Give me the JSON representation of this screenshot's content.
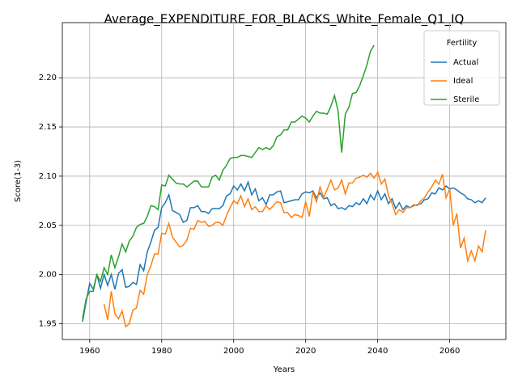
{
  "chart_data": {
    "type": "line",
    "title": "Average_EXPENDITURE_FOR_BLACKS_White_Female_Q1_IQ",
    "x_label": "Years",
    "y_label": "Score(1-3)",
    "x": [
      1958,
      1959,
      1960,
      1961,
      1962,
      1963,
      1964,
      1965,
      1966,
      1967,
      1968,
      1969,
      1970,
      1971,
      1972,
      1973,
      1974,
      1975,
      1976,
      1977,
      1978,
      1979,
      1980,
      1981,
      1982,
      1983,
      1984,
      1985,
      1986,
      1987,
      1988,
      1989,
      1990,
      1991,
      1992,
      1993,
      1994,
      1995,
      1996,
      1997,
      1998,
      1999,
      2000,
      2001,
      2002,
      2003,
      2004,
      2005,
      2006,
      2007,
      2008,
      2009,
      2010,
      2011,
      2012,
      2013,
      2014,
      2015,
      2016,
      2017,
      2018,
      2019,
      2020,
      2021,
      2022,
      2023,
      2024,
      2025,
      2026,
      2027,
      2028,
      2029,
      2030,
      2031,
      2032,
      2033,
      2034,
      2035,
      2036,
      2037,
      2038,
      2039,
      2040,
      2041,
      2042,
      2043,
      2044,
      2045,
      2046,
      2047,
      2048,
      2049,
      2050,
      2051,
      2052,
      2053,
      2054,
      2055,
      2056,
      2057,
      2058,
      2059,
      2060,
      2061,
      2062,
      2063,
      2064,
      2065,
      2066,
      2067,
      2068,
      2069,
      2070
    ],
    "series": [
      {
        "name": "Actual",
        "color": "#1f77b4",
        "values": [
          1.952,
          1.972,
          1.991,
          1.985,
          2.0,
          1.986,
          2.0,
          1.989,
          2.0,
          1.985,
          2.001,
          2.005,
          1.987,
          1.988,
          1.992,
          1.99,
          2.01,
          2.004,
          2.023,
          2.033,
          2.045,
          2.048,
          2.068,
          2.073,
          2.081,
          2.065,
          2.063,
          2.061,
          2.053,
          2.055,
          2.068,
          2.068,
          2.07,
          2.064,
          2.064,
          2.062,
          2.067,
          2.067,
          2.067,
          2.07,
          2.08,
          2.082,
          2.09,
          2.086,
          2.092,
          2.085,
          2.094,
          2.081,
          2.087,
          2.075,
          2.078,
          2.071,
          2.081,
          2.081,
          2.084,
          2.085,
          2.073,
          2.074,
          2.075,
          2.076,
          2.076,
          2.082,
          2.084,
          2.083,
          2.085,
          2.078,
          2.083,
          2.077,
          2.078,
          2.07,
          2.072,
          2.067,
          2.068,
          2.066,
          2.07,
          2.069,
          2.073,
          2.071,
          2.077,
          2.072,
          2.081,
          2.076,
          2.085,
          2.076,
          2.082,
          2.072,
          2.077,
          2.067,
          2.073,
          2.066,
          2.07,
          2.068,
          2.07,
          2.071,
          2.072,
          2.076,
          2.077,
          2.083,
          2.082,
          2.088,
          2.086,
          2.09,
          2.087,
          2.088,
          2.086,
          2.083,
          2.081,
          2.077,
          2.076,
          2.073,
          2.075,
          2.073,
          2.078
        ]
      },
      {
        "name": "Ideal",
        "color": "#ff7f0e",
        "values": [
          null,
          null,
          null,
          null,
          null,
          null,
          1.97,
          1.954,
          1.983,
          1.96,
          1.955,
          1.963,
          1.947,
          1.95,
          1.964,
          1.966,
          1.984,
          1.98,
          2.0,
          2.009,
          2.021,
          2.021,
          2.042,
          2.041,
          2.052,
          2.038,
          2.033,
          2.028,
          2.03,
          2.035,
          2.047,
          2.046,
          2.055,
          2.053,
          2.054,
          2.049,
          2.05,
          2.053,
          2.053,
          2.05,
          2.06,
          2.068,
          2.075,
          2.072,
          2.08,
          2.069,
          2.077,
          2.066,
          2.069,
          2.064,
          2.064,
          2.07,
          2.066,
          2.07,
          2.074,
          2.073,
          2.063,
          2.063,
          2.058,
          2.061,
          2.06,
          2.058,
          2.074,
          2.059,
          2.084,
          2.074,
          2.089,
          2.078,
          2.087,
          2.096,
          2.086,
          2.088,
          2.096,
          2.082,
          2.093,
          2.093,
          2.098,
          2.099,
          2.101,
          2.099,
          2.103,
          2.098,
          2.104,
          2.092,
          2.097,
          2.08,
          2.072,
          2.061,
          2.066,
          2.063,
          2.068,
          2.068,
          2.071,
          2.07,
          2.075,
          2.078,
          2.084,
          2.089,
          2.096,
          2.092,
          2.102,
          2.078,
          2.087,
          2.05,
          2.062,
          2.027,
          2.037,
          2.014,
          2.024,
          2.014,
          2.029,
          2.023,
          2.045
        ]
      },
      {
        "name": "Sterile",
        "color": "#2ca02c",
        "values": [
          1.955,
          1.975,
          1.983,
          1.983,
          2.0,
          1.993,
          2.007,
          2.0,
          2.02,
          2.007,
          2.018,
          2.031,
          2.023,
          2.034,
          2.039,
          2.048,
          2.051,
          2.052,
          2.059,
          2.07,
          2.069,
          2.066,
          2.091,
          2.09,
          2.101,
          2.097,
          2.093,
          2.092,
          2.092,
          2.089,
          2.092,
          2.095,
          2.095,
          2.089,
          2.089,
          2.089,
          2.099,
          2.101,
          2.096,
          2.106,
          2.111,
          2.118,
          2.119,
          2.119,
          2.121,
          2.121,
          2.12,
          2.119,
          2.124,
          2.129,
          2.127,
          2.129,
          2.127,
          2.131,
          2.14,
          2.142,
          2.147,
          2.147,
          2.155,
          2.155,
          2.158,
          2.161,
          2.159,
          2.155,
          2.161,
          2.166,
          2.164,
          2.164,
          2.163,
          2.171,
          2.182,
          2.166,
          2.124,
          2.163,
          2.17,
          2.184,
          2.185,
          2.192,
          2.202,
          2.213,
          2.227,
          2.233,
          null,
          null,
          null,
          null,
          null,
          null,
          null,
          null,
          null,
          null,
          null,
          null,
          null,
          null,
          null,
          null,
          null,
          null,
          null,
          null,
          null,
          null,
          null,
          null,
          null,
          null,
          null,
          null,
          null,
          null,
          null
        ]
      }
    ],
    "xlim": [
      1952.4,
      2075.6
    ],
    "xticks": [
      1960,
      1980,
      2000,
      2020,
      2040,
      2060
    ],
    "ylim": [
      1.934,
      2.256
    ],
    "yticks": [
      1.95,
      {
        "value": 2,
        "label": "2.00"
      },
      2.05,
      {
        "value": 2.1,
        "label": "2.10"
      },
      2.15,
      {
        "value": 2.2,
        "label": "2.20"
      }
    ],
    "grid": true,
    "legend": {
      "title": "Fertility",
      "loc": "upper right"
    }
  }
}
